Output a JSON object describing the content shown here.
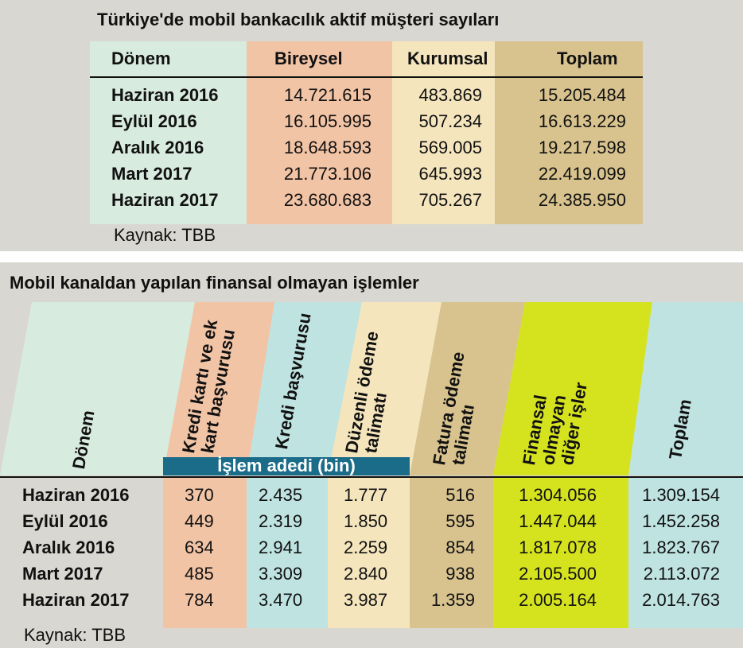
{
  "table1": {
    "title": "Türkiye'de mobil bankacılık aktif müşteri sayıları",
    "headers": [
      "Dönem",
      "Bireysel",
      "Kurumsal",
      "Toplam"
    ],
    "rows": [
      [
        "Haziran 2016",
        "14.721.615",
        "483.869",
        "15.205.484"
      ],
      [
        "Eylül 2016",
        "16.105.995",
        "507.234",
        "16.613.229"
      ],
      [
        "Aralık 2016",
        "18.648.593",
        "569.005",
        "19.217.598"
      ],
      [
        "Mart 2017",
        "21.773.106",
        "645.993",
        "22.419.099"
      ],
      [
        "Haziran 2017",
        "23.680.683",
        "705.267",
        "24.385.950"
      ]
    ],
    "source": "Kaynak: TBB"
  },
  "table2": {
    "title": "Mobil kanaldan yapılan finansal olmayan işlemler",
    "headers": [
      [
        "Dönem"
      ],
      [
        "Kredi kartı ve ek",
        "kart başvurusu"
      ],
      [
        "Kredi başvurusu"
      ],
      [
        "Düzenli ödeme",
        "talimatı"
      ],
      [
        "Fatura ödeme",
        "talimatı"
      ],
      [
        "Finansal",
        "olmayan",
        "diğer işler"
      ],
      [
        "Toplam"
      ]
    ],
    "unit": "İşlem adedi (bin)",
    "rows": [
      [
        "Haziran 2016",
        "370",
        "2.435",
        "1.777",
        "516",
        "1.304.056",
        "1.309.154"
      ],
      [
        "Eylül 2016",
        "449",
        "2.319",
        "1.850",
        "595",
        "1.447.044",
        "1.452.258"
      ],
      [
        "Aralık 2016",
        "634",
        "2.941",
        "2.259",
        "854",
        "1.817.078",
        "1.823.767"
      ],
      [
        "Mart 2017",
        "485",
        "3.309",
        "2.840",
        "938",
        "2.105.500",
        "2.113.072"
      ],
      [
        "Haziran 2017",
        "784",
        "3.470",
        "3.987",
        "1.359",
        "2.005.164",
        "2.014.763"
      ]
    ],
    "source": "Kaynak: TBB"
  }
}
